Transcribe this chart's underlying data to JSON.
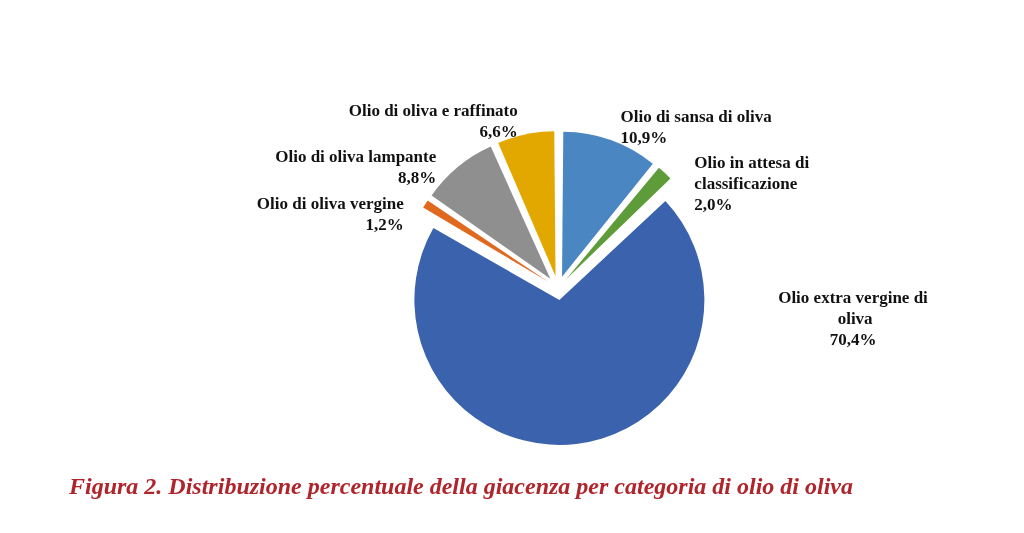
{
  "chart_data": {
    "type": "pie",
    "title": "Figura 2. Distribuzione percentuale della giacenza per categoria di olio di oliva",
    "categories": [
      "Olio di sansa di oliva",
      "Olio in attesa di classificazione",
      "Olio extra vergine di oliva",
      "Olio di oliva vergine",
      "Olio di oliva lampante",
      "Olio di oliva e raffinato"
    ],
    "values": [
      10.9,
      2.0,
      70.4,
      1.2,
      8.8,
      6.6
    ],
    "value_labels": [
      "10,9%",
      "2,0%",
      "70,4%",
      "1,2%",
      "8,8%",
      "6,6%"
    ],
    "colors": [
      "#4a86c2",
      "#5e9c3a",
      "#3a62ad",
      "#e0691f",
      "#8f8f8f",
      "#e3a800"
    ],
    "legend": false
  }
}
